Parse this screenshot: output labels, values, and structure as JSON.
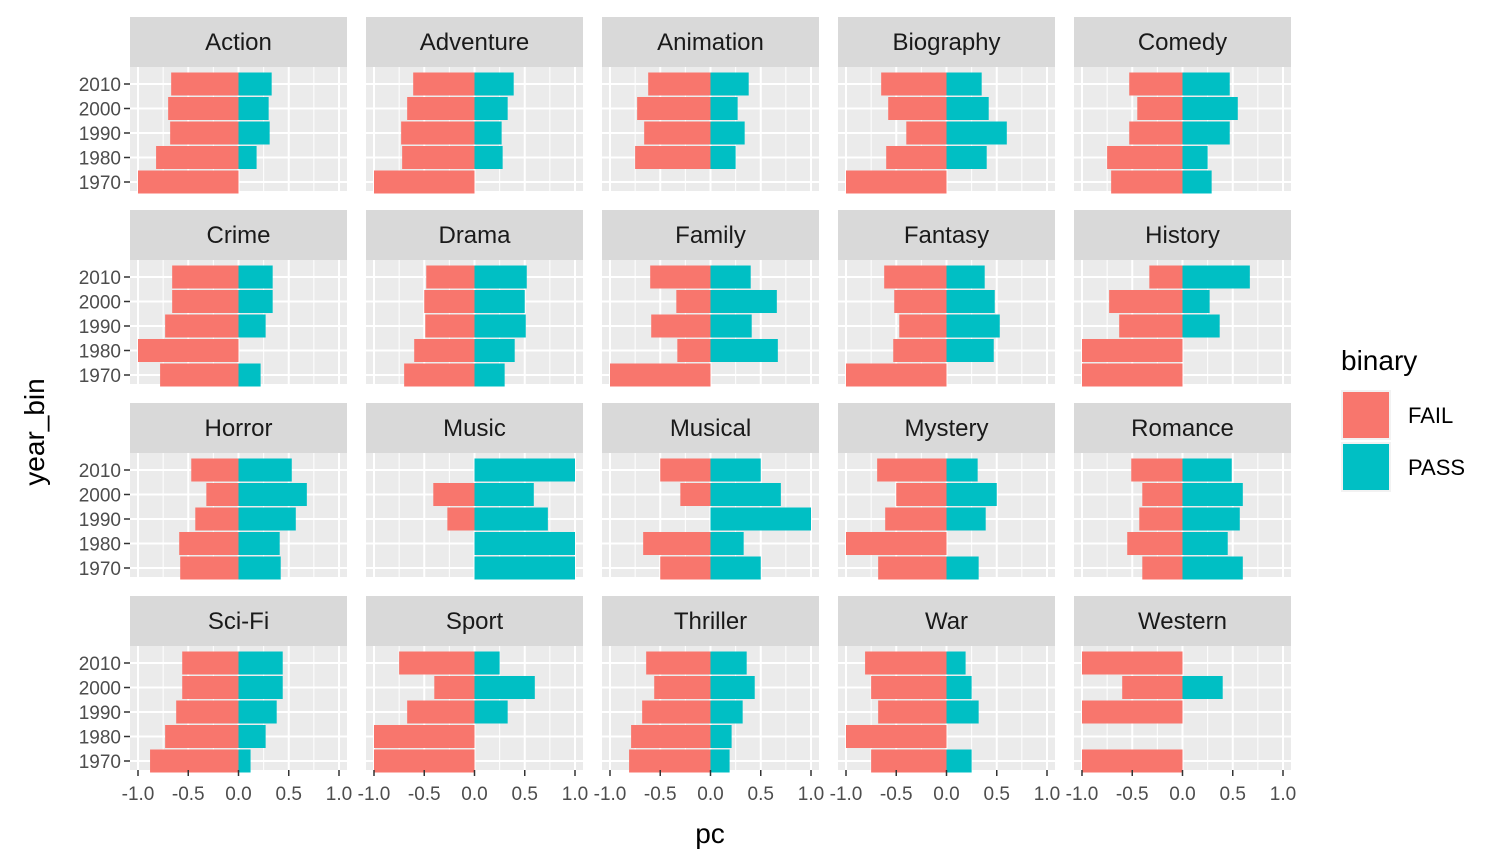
{
  "chart_data": {
    "type": "bar",
    "orientation": "horizontal",
    "facet_layout": "5 columns x 4 rows",
    "xlabel": "pc",
    "ylabel": "year_bin",
    "xlim": [
      -1.0,
      1.0
    ],
    "x_ticks": [
      "-1.0",
      "-0.5",
      "0.0",
      "0.5",
      "1.0"
    ],
    "categories": [
      "2010",
      "2000",
      "1990",
      "1980",
      "1970"
    ],
    "legend": {
      "title": "binary",
      "placement": "right",
      "entries": [
        {
          "name": "FAIL",
          "color": "#F8766D"
        },
        {
          "name": "PASS",
          "color": "#00BFC4"
        }
      ]
    },
    "colors": {
      "fail": "#F8766D",
      "pass": "#00BFC4",
      "panel_bg": "#EBEBEB",
      "strip_bg": "#D9D9D9",
      "grid": "#FFFFFF"
    },
    "facets": [
      {
        "name": "Action",
        "fail": [
          -0.67,
          -0.7,
          -0.68,
          -0.82,
          -1.0
        ],
        "pass": [
          0.33,
          0.3,
          0.31,
          0.18,
          0.0
        ]
      },
      {
        "name": "Adventure",
        "fail": [
          -0.61,
          -0.67,
          -0.73,
          -0.72,
          -1.0
        ],
        "pass": [
          0.39,
          0.33,
          0.27,
          0.28,
          0.0
        ]
      },
      {
        "name": "Animation",
        "fail": [
          -0.62,
          -0.73,
          -0.66,
          -0.75,
          0.0
        ],
        "pass": [
          0.38,
          0.27,
          0.34,
          0.25,
          0.0
        ]
      },
      {
        "name": "Biography",
        "fail": [
          -0.65,
          -0.58,
          -0.4,
          -0.6,
          -1.0
        ],
        "pass": [
          0.35,
          0.42,
          0.6,
          0.4,
          0.0
        ]
      },
      {
        "name": "Comedy",
        "fail": [
          -0.53,
          -0.45,
          -0.53,
          -0.75,
          -0.71
        ],
        "pass": [
          0.47,
          0.55,
          0.47,
          0.25,
          0.29
        ]
      },
      {
        "name": "Crime",
        "fail": [
          -0.66,
          -0.66,
          -0.73,
          -1.0,
          -0.78
        ],
        "pass": [
          0.34,
          0.34,
          0.27,
          0.0,
          0.22
        ]
      },
      {
        "name": "Drama",
        "fail": [
          -0.48,
          -0.5,
          -0.49,
          -0.6,
          -0.7
        ],
        "pass": [
          0.52,
          0.5,
          0.51,
          0.4,
          0.3
        ]
      },
      {
        "name": "Family",
        "fail": [
          -0.6,
          -0.34,
          -0.59,
          -0.33,
          -1.0
        ],
        "pass": [
          0.4,
          0.66,
          0.41,
          0.67,
          0.0
        ]
      },
      {
        "name": "Fantasy",
        "fail": [
          -0.62,
          -0.52,
          -0.47,
          -0.53,
          -1.0
        ],
        "pass": [
          0.38,
          0.48,
          0.53,
          0.47,
          0.0
        ]
      },
      {
        "name": "History",
        "fail": [
          -0.33,
          -0.73,
          -0.63,
          -1.0,
          -1.0
        ],
        "pass": [
          0.67,
          0.27,
          0.37,
          0.0,
          0.0
        ]
      },
      {
        "name": "Horror",
        "fail": [
          -0.47,
          -0.32,
          -0.43,
          -0.59,
          -0.58
        ],
        "pass": [
          0.53,
          0.68,
          0.57,
          0.41,
          0.42
        ]
      },
      {
        "name": "Music",
        "fail": [
          0.0,
          -0.41,
          -0.27,
          0.0,
          0.0
        ],
        "pass": [
          1.0,
          0.59,
          0.73,
          1.0,
          1.0
        ]
      },
      {
        "name": "Musical",
        "fail": [
          -0.5,
          -0.3,
          0.0,
          -0.67,
          -0.5
        ],
        "pass": [
          0.5,
          0.7,
          1.0,
          0.33,
          0.5
        ]
      },
      {
        "name": "Mystery",
        "fail": [
          -0.69,
          -0.5,
          -0.61,
          -1.0,
          -0.68
        ],
        "pass": [
          0.31,
          0.5,
          0.39,
          0.0,
          0.32
        ]
      },
      {
        "name": "Romance",
        "fail": [
          -0.51,
          -0.4,
          -0.43,
          -0.55,
          -0.4
        ],
        "pass": [
          0.49,
          0.6,
          0.57,
          0.45,
          0.6
        ]
      },
      {
        "name": "Sci-Fi",
        "fail": [
          -0.56,
          -0.56,
          -0.62,
          -0.73,
          -0.88
        ],
        "pass": [
          0.44,
          0.44,
          0.38,
          0.27,
          0.12
        ]
      },
      {
        "name": "Sport",
        "fail": [
          -0.75,
          -0.4,
          -0.67,
          -1.0,
          -1.0
        ],
        "pass": [
          0.25,
          0.6,
          0.33,
          0.0,
          0.0
        ]
      },
      {
        "name": "Thriller",
        "fail": [
          -0.64,
          -0.56,
          -0.68,
          -0.79,
          -0.81
        ],
        "pass": [
          0.36,
          0.44,
          0.32,
          0.21,
          0.19
        ]
      },
      {
        "name": "War",
        "fail": [
          -0.81,
          -0.75,
          -0.68,
          -1.0,
          -0.75
        ],
        "pass": [
          0.19,
          0.25,
          0.32,
          0.0,
          0.25
        ]
      },
      {
        "name": "Western",
        "fail": [
          -1.0,
          -0.6,
          -1.0,
          0.0,
          -1.0
        ],
        "pass": [
          0.0,
          0.4,
          0.0,
          0.0,
          0.0
        ]
      }
    ]
  }
}
